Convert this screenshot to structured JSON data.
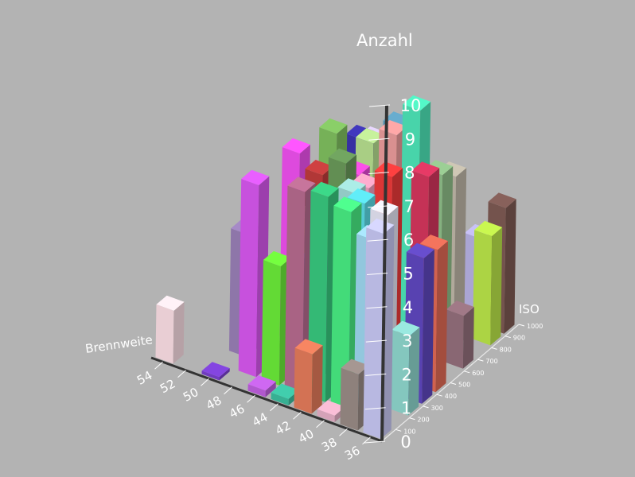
{
  "chart_data": {
    "type": "bar3d",
    "title": "Anzahl",
    "xlabel": "Brennweite",
    "ylabel": "ISO",
    "zlabel": "",
    "x_ticks": [
      "54",
      "52",
      "50",
      "48",
      "46",
      "44",
      "42",
      "40",
      "38",
      "36"
    ],
    "y_ticks": [
      "100",
      "200",
      "300",
      "400",
      "500",
      "600",
      "700",
      "800",
      "900",
      "1000"
    ],
    "z_ticks": [
      "0",
      "1",
      "2",
      "3",
      "4",
      "5",
      "6",
      "7",
      "8",
      "9",
      "10"
    ],
    "zlim": [
      0,
      10
    ],
    "grid": false,
    "bars": [
      {
        "brennweite": 36,
        "iso": 100,
        "count": 6.2,
        "color": "#c8c8f5"
      },
      {
        "brennweite": 36,
        "iso": 300,
        "count": 2.4,
        "color": "#8fd8cf"
      },
      {
        "brennweite": 36,
        "iso": 400,
        "count": 4.4,
        "color": "#6048c0"
      },
      {
        "brennweite": 36,
        "iso": 500,
        "count": 4.3,
        "color": "#e26b56"
      },
      {
        "brennweite": 36,
        "iso": 700,
        "count": 1.6,
        "color": "#95707d"
      },
      {
        "brennweite": 36,
        "iso": 900,
        "count": 3.3,
        "color": "#bbe64a"
      },
      {
        "brennweite": 36,
        "iso": 1000,
        "count": 3.8,
        "color": "#7e5a54"
      },
      {
        "brennweite": 38,
        "iso": 100,
        "count": 1.7,
        "color": "#9a8c87"
      },
      {
        "brennweite": 38,
        "iso": 200,
        "count": 5.4,
        "color": "#9fd8f0"
      },
      {
        "brennweite": 38,
        "iso": 300,
        "count": 5.8,
        "color": "#e5e5f5"
      },
      {
        "brennweite": 38,
        "iso": 600,
        "count": 5.9,
        "color": "#d6365e"
      },
      {
        "brennweite": 38,
        "iso": 700,
        "count": 5.6,
        "color": "#90c08a"
      },
      {
        "brennweite": 38,
        "iso": 800,
        "count": 5.2,
        "color": "#c0b8a8"
      },
      {
        "brennweite": 38,
        "iso": 1000,
        "count": 2.6,
        "color": "#b9b3e5"
      },
      {
        "brennweite": 40,
        "iso": 100,
        "count": 0.2,
        "color": "#e8b0c8"
      },
      {
        "brennweite": 40,
        "iso": 200,
        "count": 6.0,
        "color": "#49ee84"
      },
      {
        "brennweite": 40,
        "iso": 300,
        "count": 5.9,
        "color": "#5adbe6"
      },
      {
        "brennweite": 40,
        "iso": 500,
        "count": 6.0,
        "color": "#ee3b3b"
      },
      {
        "brennweite": 40,
        "iso": 700,
        "count": 7.3,
        "color": "#4ee6b9"
      },
      {
        "brennweite": 42,
        "iso": 100,
        "count": 1.8,
        "color": "#e57c5b"
      },
      {
        "brennweite": 42,
        "iso": 200,
        "count": 6.2,
        "color": "#38c97f"
      },
      {
        "brennweite": 42,
        "iso": 400,
        "count": 5.6,
        "color": "#9fdbd6"
      },
      {
        "brennweite": 42,
        "iso": 500,
        "count": 5.4,
        "color": "#f0a0c0"
      },
      {
        "brennweite": 42,
        "iso": 700,
        "count": 6.3,
        "color": "#ec9c9c"
      },
      {
        "brennweite": 42,
        "iso": 800,
        "count": 5.6,
        "color": "#d8b08c"
      },
      {
        "brennweite": 44,
        "iso": 100,
        "count": 0.2,
        "color": "#3cbfa0"
      },
      {
        "brennweite": 44,
        "iso": 200,
        "count": 6.1,
        "color": "#b86c90"
      },
      {
        "brennweite": 44,
        "iso": 300,
        "count": 3.6,
        "color": "#a080c8"
      },
      {
        "brennweite": 44,
        "iso": 500,
        "count": 5.9,
        "color": "#6a9a5a"
      },
      {
        "brennweite": 44,
        "iso": 600,
        "count": 5.2,
        "color": "#e84ad8"
      },
      {
        "brennweite": 44,
        "iso": 700,
        "count": 5.8,
        "color": "#b8e090"
      },
      {
        "brennweite": 44,
        "iso": 900,
        "count": 5.6,
        "color": "#60a0c0"
      },
      {
        "brennweite": 46,
        "iso": 100,
        "count": 0.2,
        "color": "#c060e0"
      },
      {
        "brennweite": 46,
        "iso": 200,
        "count": 3.6,
        "color": "#6ced3a"
      },
      {
        "brennweite": 46,
        "iso": 400,
        "count": 4.3,
        "color": "#e0a070"
      },
      {
        "brennweite": 46,
        "iso": 500,
        "count": 5.3,
        "color": "#c03c3c"
      },
      {
        "brennweite": 46,
        "iso": 600,
        "count": 6.2,
        "color": "#80c060"
      },
      {
        "brennweite": 46,
        "iso": 800,
        "count": 5.3,
        "color": "#3c34b0"
      },
      {
        "brennweite": 46,
        "iso": 900,
        "count": 4.9,
        "color": "#d8c8f5"
      },
      {
        "brennweite": 48,
        "iso": 200,
        "count": 5.8,
        "color": "#d858f0"
      },
      {
        "brennweite": 48,
        "iso": 500,
        "count": 5.7,
        "color": "#f050f0"
      },
      {
        "brennweite": 48,
        "iso": 800,
        "count": 3.2,
        "color": "#d0c0f0"
      },
      {
        "brennweite": 50,
        "iso": 100,
        "count": 0.1,
        "color": "#7a40d0"
      },
      {
        "brennweite": 50,
        "iso": 300,
        "count": 3.7,
        "color": "#9a80b8"
      },
      {
        "brennweite": 54,
        "iso": 100,
        "count": 1.6,
        "color": "#fde0e6"
      }
    ]
  }
}
